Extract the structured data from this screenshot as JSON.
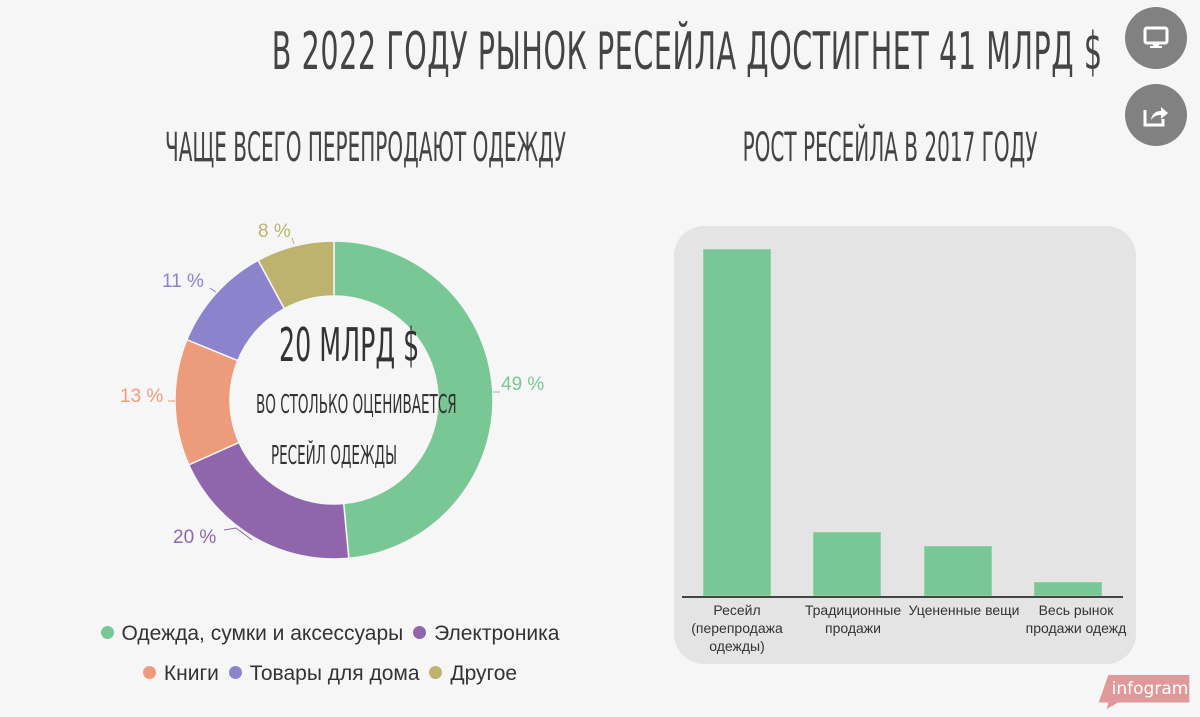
{
  "header": {
    "title": "В 2022 году рынок ресейла достигнет 41 млрд $"
  },
  "left": {
    "subtitle": "Чаще всего перепродают одежду",
    "center_value": "20 млрд $",
    "center_caption_line1": "Во столько оценивается",
    "center_caption_line2": "ресейл одежды"
  },
  "right": {
    "subtitle": "Рост ресейла в 2017 году"
  },
  "controls": {
    "fullscreen_icon": "monitor-icon",
    "share_icon": "share-icon"
  },
  "brand": {
    "label": "infogram"
  },
  "colors": {
    "green": "#79c795",
    "purple": "#8f66ab",
    "salmon": "#ec9b7b",
    "lavender": "#8b83cc",
    "olive": "#bdb36e",
    "panel": "#e4e4e4",
    "text": "#444444"
  },
  "chart_data": [
    {
      "type": "pie",
      "variant": "donut",
      "title": "Чаще всего перепродают одежду",
      "categories": [
        "Одежда, сумки и аксессуары",
        "Электроника",
        "Книги",
        "Товары для дома",
        "Другое"
      ],
      "values": [
        49,
        20,
        13,
        11,
        8
      ],
      "labels": [
        "49 %",
        "20 %",
        "13 %",
        "11 %",
        "8 %"
      ],
      "colors": [
        "#79c795",
        "#8f66ab",
        "#ec9b7b",
        "#8b83cc",
        "#bdb36e"
      ],
      "center_text": [
        "20 млрд $",
        "Во столько оценивается",
        "ресейл одежды"
      ],
      "legend_position": "bottom"
    },
    {
      "type": "bar",
      "title": "Рост ресейла в 2017 году",
      "categories": [
        "Ресейл (перепродажа одежды)",
        "Традиционные продажи",
        "Уцененные вещи",
        "Весь рынок продажи одежды"
      ],
      "values": [
        49,
        9,
        7,
        2
      ],
      "value_note": "values estimated from bar heights; no axis ticks shown",
      "xlabel": "",
      "ylabel": "",
      "grid": false,
      "color": "#79c795"
    }
  ],
  "donut_labels": [
    {
      "text": "49 %"
    },
    {
      "text": "20 %"
    },
    {
      "text": "13 %"
    },
    {
      "text": "11 %"
    },
    {
      "text": "8 %"
    }
  ],
  "legend": [
    {
      "label": "Одежда, сумки и аксессуары"
    },
    {
      "label": "Электроника"
    },
    {
      "label": "Книги"
    },
    {
      "label": "Товары для дома"
    },
    {
      "label": "Другое"
    }
  ],
  "bar_labels": [
    {
      "line1": "Ресейл",
      "line2": "(перепродажа",
      "line3": "одежды)"
    },
    {
      "line1": "Традиционные",
      "line2": "продажи",
      "line3": ""
    },
    {
      "line1": "Уцененные вещи",
      "line2": "",
      "line3": ""
    },
    {
      "line1": "Весь рынок",
      "line2": "продажи одежд",
      "line3": ""
    }
  ]
}
